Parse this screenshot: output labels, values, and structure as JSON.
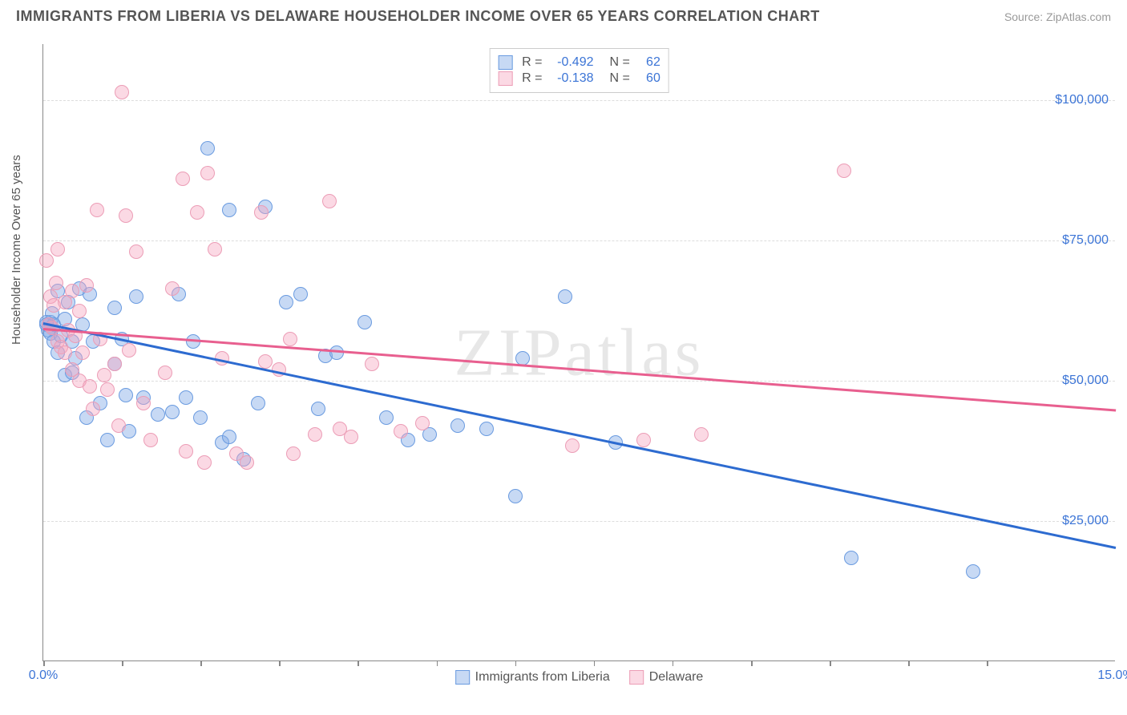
{
  "header": {
    "title": "IMMIGRANTS FROM LIBERIA VS DELAWARE HOUSEHOLDER INCOME OVER 65 YEARS CORRELATION CHART",
    "source": "Source: ZipAtlas.com"
  },
  "chart": {
    "type": "scatter",
    "ylabel": "Householder Income Over 65 years",
    "watermark": "ZIPatlas",
    "xlim": [
      0,
      15
    ],
    "ylim": [
      0,
      110000
    ],
    "xtick_label_left": "0.0%",
    "xtick_label_right": "15.0%",
    "xtick_positions": [
      0,
      1.1,
      2.2,
      3.3,
      4.4,
      5.5,
      6.6,
      7.7,
      8.8,
      9.9,
      11.0,
      12.1,
      13.2
    ],
    "ytick_values": [
      25000,
      50000,
      75000,
      100000
    ],
    "ytick_labels": [
      "$25,000",
      "$50,000",
      "$75,000",
      "$100,000"
    ],
    "grid_color": "#dddddd",
    "axis_color": "#888888",
    "tick_label_color": "#3b74d6",
    "background": "#ffffff",
    "point_radius": 9,
    "series": [
      {
        "name": "Immigrants from Liberia",
        "fill": "rgba(130,170,230,0.45)",
        "stroke": "#6a9be0",
        "line_color": "#2d6bd0",
        "R": "-0.492",
        "N": "62",
        "regression": {
          "x1": 0,
          "y1": 60500,
          "x2": 15,
          "y2": 20500
        },
        "points": [
          [
            0.05,
            60000
          ],
          [
            0.07,
            59000
          ],
          [
            0.1,
            58500
          ],
          [
            0.1,
            60500
          ],
          [
            0.12,
            62000
          ],
          [
            0.12,
            59500
          ],
          [
            0.15,
            60000
          ],
          [
            0.15,
            57000
          ],
          [
            0.2,
            66000
          ],
          [
            0.2,
            55000
          ],
          [
            0.25,
            58000
          ],
          [
            0.3,
            61000
          ],
          [
            0.3,
            51000
          ],
          [
            0.35,
            64000
          ],
          [
            0.4,
            57000
          ],
          [
            0.4,
            51500
          ],
          [
            0.45,
            54000
          ],
          [
            0.5,
            66500
          ],
          [
            0.55,
            60000
          ],
          [
            0.6,
            43500
          ],
          [
            0.65,
            65500
          ],
          [
            0.7,
            57000
          ],
          [
            0.8,
            46000
          ],
          [
            0.9,
            39500
          ],
          [
            1.0,
            63000
          ],
          [
            1.0,
            53000
          ],
          [
            1.1,
            57500
          ],
          [
            1.15,
            47500
          ],
          [
            1.2,
            41000
          ],
          [
            1.3,
            65000
          ],
          [
            1.4,
            47000
          ],
          [
            1.6,
            44000
          ],
          [
            1.8,
            44500
          ],
          [
            1.9,
            65500
          ],
          [
            2.0,
            47000
          ],
          [
            2.1,
            57000
          ],
          [
            2.2,
            43500
          ],
          [
            2.3,
            91500
          ],
          [
            2.5,
            39000
          ],
          [
            2.6,
            80500
          ],
          [
            2.6,
            40000
          ],
          [
            2.8,
            36000
          ],
          [
            3.0,
            46000
          ],
          [
            3.1,
            81000
          ],
          [
            3.4,
            64000
          ],
          [
            3.6,
            65500
          ],
          [
            3.85,
            45000
          ],
          [
            3.95,
            54500
          ],
          [
            4.1,
            55000
          ],
          [
            4.5,
            60500
          ],
          [
            4.8,
            43500
          ],
          [
            5.1,
            39500
          ],
          [
            5.4,
            40500
          ],
          [
            5.8,
            42000
          ],
          [
            6.2,
            41500
          ],
          [
            6.6,
            29500
          ],
          [
            6.7,
            54000
          ],
          [
            7.3,
            65000
          ],
          [
            8.0,
            39000
          ],
          [
            11.3,
            18500
          ],
          [
            13.0,
            16000
          ],
          [
            0.05,
            60500
          ]
        ]
      },
      {
        "name": "Delaware",
        "fill": "rgba(245,165,190,0.42)",
        "stroke": "#ec9db6",
        "line_color": "#e85f8f",
        "R": "-0.138",
        "N": "60",
        "regression": {
          "x1": 0,
          "y1": 59500,
          "x2": 15,
          "y2": 45000
        },
        "points": [
          [
            0.05,
            71500
          ],
          [
            0.08,
            60000
          ],
          [
            0.1,
            65000
          ],
          [
            0.12,
            59500
          ],
          [
            0.15,
            63500
          ],
          [
            0.18,
            67500
          ],
          [
            0.2,
            73500
          ],
          [
            0.2,
            57000
          ],
          [
            0.25,
            56000
          ],
          [
            0.3,
            64000
          ],
          [
            0.3,
            55000
          ],
          [
            0.35,
            59000
          ],
          [
            0.4,
            66000
          ],
          [
            0.4,
            52000
          ],
          [
            0.45,
            58000
          ],
          [
            0.5,
            62500
          ],
          [
            0.5,
            50000
          ],
          [
            0.55,
            55000
          ],
          [
            0.6,
            67000
          ],
          [
            0.65,
            49000
          ],
          [
            0.7,
            45000
          ],
          [
            0.75,
            80500
          ],
          [
            0.8,
            57500
          ],
          [
            0.85,
            51000
          ],
          [
            0.9,
            48500
          ],
          [
            1.0,
            53000
          ],
          [
            1.05,
            42000
          ],
          [
            1.1,
            101500
          ],
          [
            1.15,
            79500
          ],
          [
            1.2,
            55500
          ],
          [
            1.3,
            73000
          ],
          [
            1.4,
            46000
          ],
          [
            1.5,
            39500
          ],
          [
            1.7,
            51500
          ],
          [
            1.8,
            66500
          ],
          [
            1.95,
            86000
          ],
          [
            2.0,
            37500
          ],
          [
            2.15,
            80000
          ],
          [
            2.25,
            35500
          ],
          [
            2.3,
            87000
          ],
          [
            2.4,
            73500
          ],
          [
            2.5,
            54000
          ],
          [
            2.7,
            37000
          ],
          [
            2.85,
            35500
          ],
          [
            3.05,
            80000
          ],
          [
            3.1,
            53500
          ],
          [
            3.3,
            52000
          ],
          [
            3.45,
            57500
          ],
          [
            3.5,
            37000
          ],
          [
            3.8,
            40500
          ],
          [
            4.0,
            82000
          ],
          [
            4.15,
            41500
          ],
          [
            4.3,
            40000
          ],
          [
            4.6,
            53000
          ],
          [
            5.0,
            41000
          ],
          [
            5.3,
            42500
          ],
          [
            7.4,
            38500
          ],
          [
            8.4,
            39500
          ],
          [
            9.2,
            40500
          ],
          [
            11.2,
            87500
          ]
        ]
      }
    ]
  }
}
